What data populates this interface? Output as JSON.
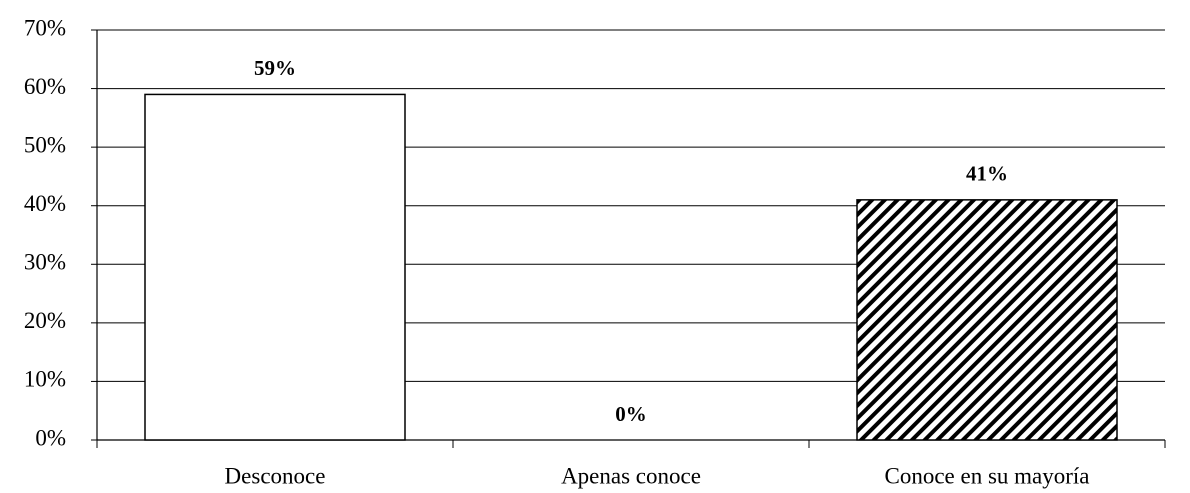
{
  "chart_data": {
    "type": "bar",
    "categories": [
      "Desconoce",
      "Apenas conoce",
      "Conoce en su mayoría"
    ],
    "values": [
      59,
      0,
      41
    ],
    "value_labels": [
      "59%",
      "0%",
      "41%"
    ],
    "bar_fills": [
      "solid",
      "solid",
      "hatch"
    ],
    "color": "#ffffff",
    "ylim": [
      0,
      70
    ],
    "yticks": [
      {
        "value": 0,
        "label": "0%"
      },
      {
        "value": 10,
        "label": "10%"
      },
      {
        "value": 20,
        "label": "20%"
      },
      {
        "value": 30,
        "label": "30%"
      },
      {
        "value": 40,
        "label": "40%"
      },
      {
        "value": 50,
        "label": "50%"
      },
      {
        "value": 60,
        "label": "60%"
      },
      {
        "value": 70,
        "label": "70%"
      }
    ],
    "grid": true
  }
}
